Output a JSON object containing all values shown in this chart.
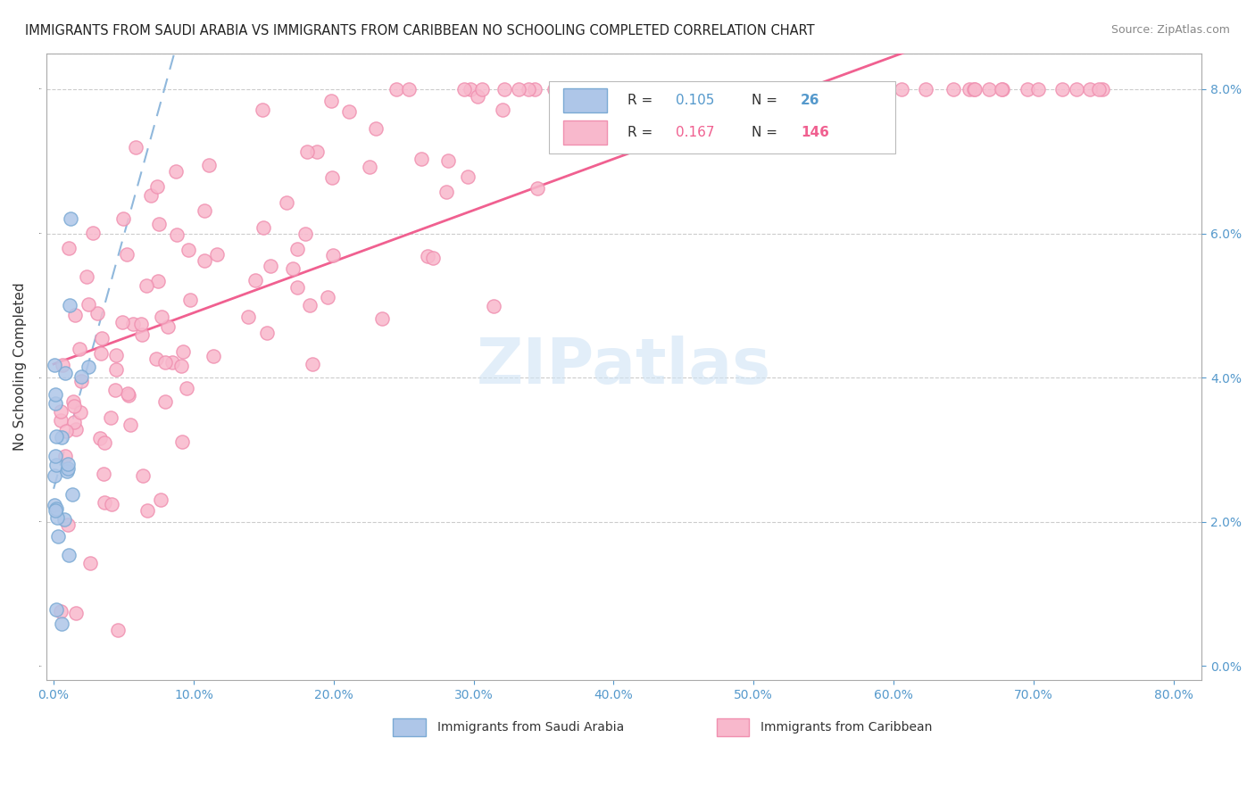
{
  "title": "IMMIGRANTS FROM SAUDI ARABIA VS IMMIGRANTS FROM CARIBBEAN NO SCHOOLING COMPLETED CORRELATION CHART",
  "source": "Source: ZipAtlas.com",
  "ylabel": "No Schooling Completed",
  "legend_r_saudi": "0.105",
  "legend_n_saudi": "26",
  "legend_r_carib": "0.167",
  "legend_n_carib": "146",
  "blue_face": "#AEC6E8",
  "blue_edge": "#7BAAD4",
  "blue_line": "#90B8DC",
  "pink_face": "#F8B8CC",
  "pink_edge": "#F090B0",
  "pink_line": "#F06090",
  "watermark": "ZIPatlas",
  "tick_color": "#5599CC",
  "grid_color": "#CCCCCC",
  "title_color": "#222222",
  "source_color": "#888888",
  "watermark_color": "#D0E4F5"
}
